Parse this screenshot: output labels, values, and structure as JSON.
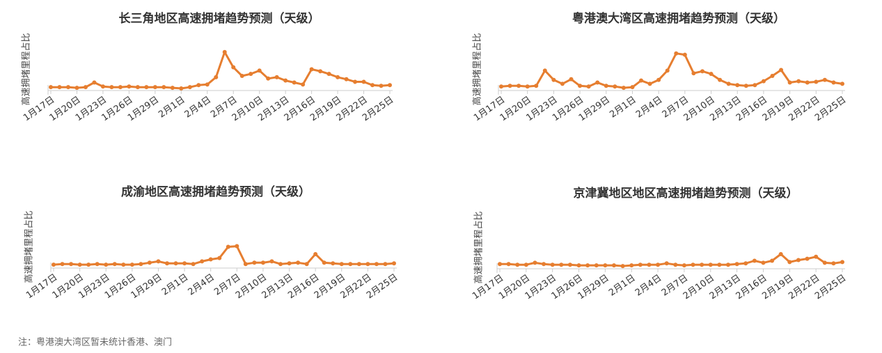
{
  "chart_data": [
    {
      "type": "line",
      "title": "长三角地区高速拥堵趋势预测（天级）",
      "y_label": "高速拥堵里程占比",
      "categories": [
        "1月17日",
        null,
        null,
        "1月20日",
        null,
        null,
        "1月23日",
        null,
        null,
        "1月26日",
        null,
        null,
        "1月29日",
        null,
        null,
        "2月1日",
        null,
        null,
        "2月4日",
        null,
        null,
        "2月7日",
        null,
        null,
        "2月10日",
        null,
        null,
        "2月13日",
        null,
        null,
        "2月16日",
        null,
        null,
        "2月19日",
        null,
        null,
        "2月22日",
        null,
        null,
        "2月25日"
      ],
      "color": "#e67e30",
      "values": [
        3,
        3,
        3,
        2,
        3,
        10,
        4,
        3,
        3,
        4,
        3,
        3,
        3,
        3,
        2,
        1,
        3,
        6,
        7,
        18,
        56,
        33,
        20,
        23,
        28,
        16,
        18,
        13,
        10,
        7,
        30,
        27,
        23,
        18,
        15,
        11,
        11,
        6,
        5,
        6
      ],
      "ylim": [
        0,
        60
      ]
    },
    {
      "type": "line",
      "title": "粤港澳大湾区高速拥堵趋势预测（天级）",
      "y_label": "高速拥堵里程占比",
      "categories": [
        "1月17日",
        null,
        null,
        "1月20日",
        null,
        null,
        "1月23日",
        null,
        null,
        "1月26日",
        null,
        null,
        "1月29日",
        null,
        null,
        "2月1日",
        null,
        null,
        "2月4日",
        null,
        null,
        "2月7日",
        null,
        null,
        "2月10日",
        null,
        null,
        "2月13日",
        null,
        null,
        "2月16日",
        null,
        null,
        "2月19日",
        null,
        null,
        "2月22日",
        null,
        null,
        "2月25日"
      ],
      "color": "#e67e30",
      "values": [
        4,
        5,
        5,
        4,
        5,
        28,
        14,
        8,
        15,
        5,
        4,
        10,
        5,
        4,
        2,
        3,
        13,
        8,
        14,
        28,
        54,
        52,
        24,
        27,
        23,
        14,
        8,
        6,
        5,
        6,
        12,
        20,
        29,
        10,
        12,
        10,
        11,
        14,
        10,
        8
      ],
      "ylim": [
        0,
        60
      ]
    },
    {
      "type": "line",
      "title": "成渝地区高速拥堵趋势预测（天级）",
      "y_label": "高速拥堵里程占比",
      "categories": [
        "1月17日",
        null,
        null,
        "1月20日",
        null,
        null,
        "1月23日",
        null,
        null,
        "1月26日",
        null,
        null,
        "1月29日",
        null,
        null,
        "2月1日",
        null,
        null,
        "2月4日",
        null,
        null,
        "2月7日",
        null,
        null,
        "2月10日",
        null,
        null,
        "2月13日",
        null,
        null,
        "2月16日",
        null,
        null,
        "2月19日",
        null,
        null,
        "2月22日",
        null,
        null,
        "2月25日"
      ],
      "color": "#e67e30",
      "values": [
        3,
        4,
        4,
        3,
        3,
        4,
        3,
        4,
        3,
        3,
        4,
        6,
        8,
        5,
        5,
        5,
        4,
        8,
        11,
        13,
        30,
        31,
        4,
        6,
        6,
        8,
        4,
        5,
        6,
        4,
        19,
        6,
        5,
        4,
        4,
        4,
        4,
        4,
        4,
        5
      ],
      "ylim": [
        0,
        60
      ]
    },
    {
      "type": "line",
      "title": "京津冀地区地区高速拥堵趋势预测（天级）",
      "y_label": "高速拥堵里程占比",
      "categories": [
        "1月17日",
        null,
        null,
        "1月20日",
        null,
        null,
        "1月23日",
        null,
        null,
        "1月26日",
        null,
        null,
        "1月29日",
        null,
        null,
        "2月1日",
        null,
        null,
        "2月4日",
        null,
        null,
        "2月7日",
        null,
        null,
        "2月10日",
        null,
        null,
        "2月13日",
        null,
        null,
        "2月16日",
        null,
        null,
        "2月19日",
        null,
        null,
        "2月22日",
        null,
        null,
        "2月25日"
      ],
      "color": "#e67e30",
      "values": [
        5,
        5,
        4,
        4,
        7,
        5,
        4,
        4,
        4,
        3,
        3,
        3,
        3,
        3,
        2,
        3,
        4,
        4,
        4,
        6,
        4,
        3,
        4,
        4,
        4,
        4,
        4,
        5,
        6,
        10,
        7,
        10,
        20,
        8,
        11,
        13,
        16,
        7,
        6,
        8
      ],
      "ylim": [
        0,
        60
      ]
    }
  ],
  "note": "注：粤港澳大湾区暂未统计香港、澳门"
}
